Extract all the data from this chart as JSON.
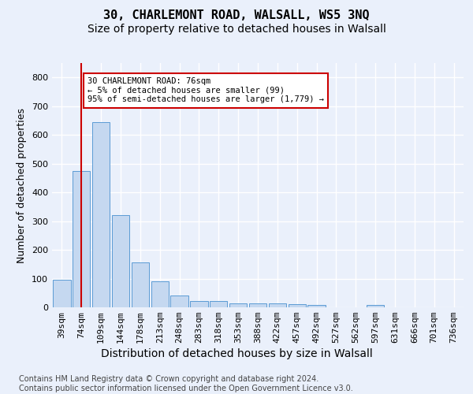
{
  "title_line1": "30, CHARLEMONT ROAD, WALSALL, WS5 3NQ",
  "title_line2": "Size of property relative to detached houses in Walsall",
  "xlabel": "Distribution of detached houses by size in Walsall",
  "ylabel": "Number of detached properties",
  "bar_labels": [
    "39sqm",
    "74sqm",
    "109sqm",
    "144sqm",
    "178sqm",
    "213sqm",
    "248sqm",
    "283sqm",
    "318sqm",
    "353sqm",
    "388sqm",
    "422sqm",
    "457sqm",
    "492sqm",
    "527sqm",
    "562sqm",
    "597sqm",
    "631sqm",
    "666sqm",
    "701sqm",
    "736sqm"
  ],
  "bar_values": [
    95,
    475,
    645,
    322,
    155,
    90,
    40,
    22,
    22,
    15,
    15,
    15,
    10,
    8,
    0,
    0,
    8,
    0,
    0,
    0,
    0
  ],
  "bar_color": "#c5d8f0",
  "bar_edge_color": "#5b9bd5",
  "vline_x": 1.0,
  "vline_color": "#cc0000",
  "annotation_text": "30 CHARLEMONT ROAD: 76sqm\n← 5% of detached houses are smaller (99)\n95% of semi-detached houses are larger (1,779) →",
  "annotation_box_color": "#ffffff",
  "annotation_box_edge_color": "#cc0000",
  "ylim": [
    0,
    850
  ],
  "yticks": [
    0,
    100,
    200,
    300,
    400,
    500,
    600,
    700,
    800
  ],
  "footer_text": "Contains HM Land Registry data © Crown copyright and database right 2024.\nContains public sector information licensed under the Open Government Licence v3.0.",
  "bg_color": "#eaf0fb",
  "plot_bg_color": "#eaf0fb",
  "grid_color": "#ffffff",
  "title_fontsize": 11,
  "subtitle_fontsize": 10,
  "axis_label_fontsize": 9,
  "tick_fontsize": 8,
  "footer_fontsize": 7
}
